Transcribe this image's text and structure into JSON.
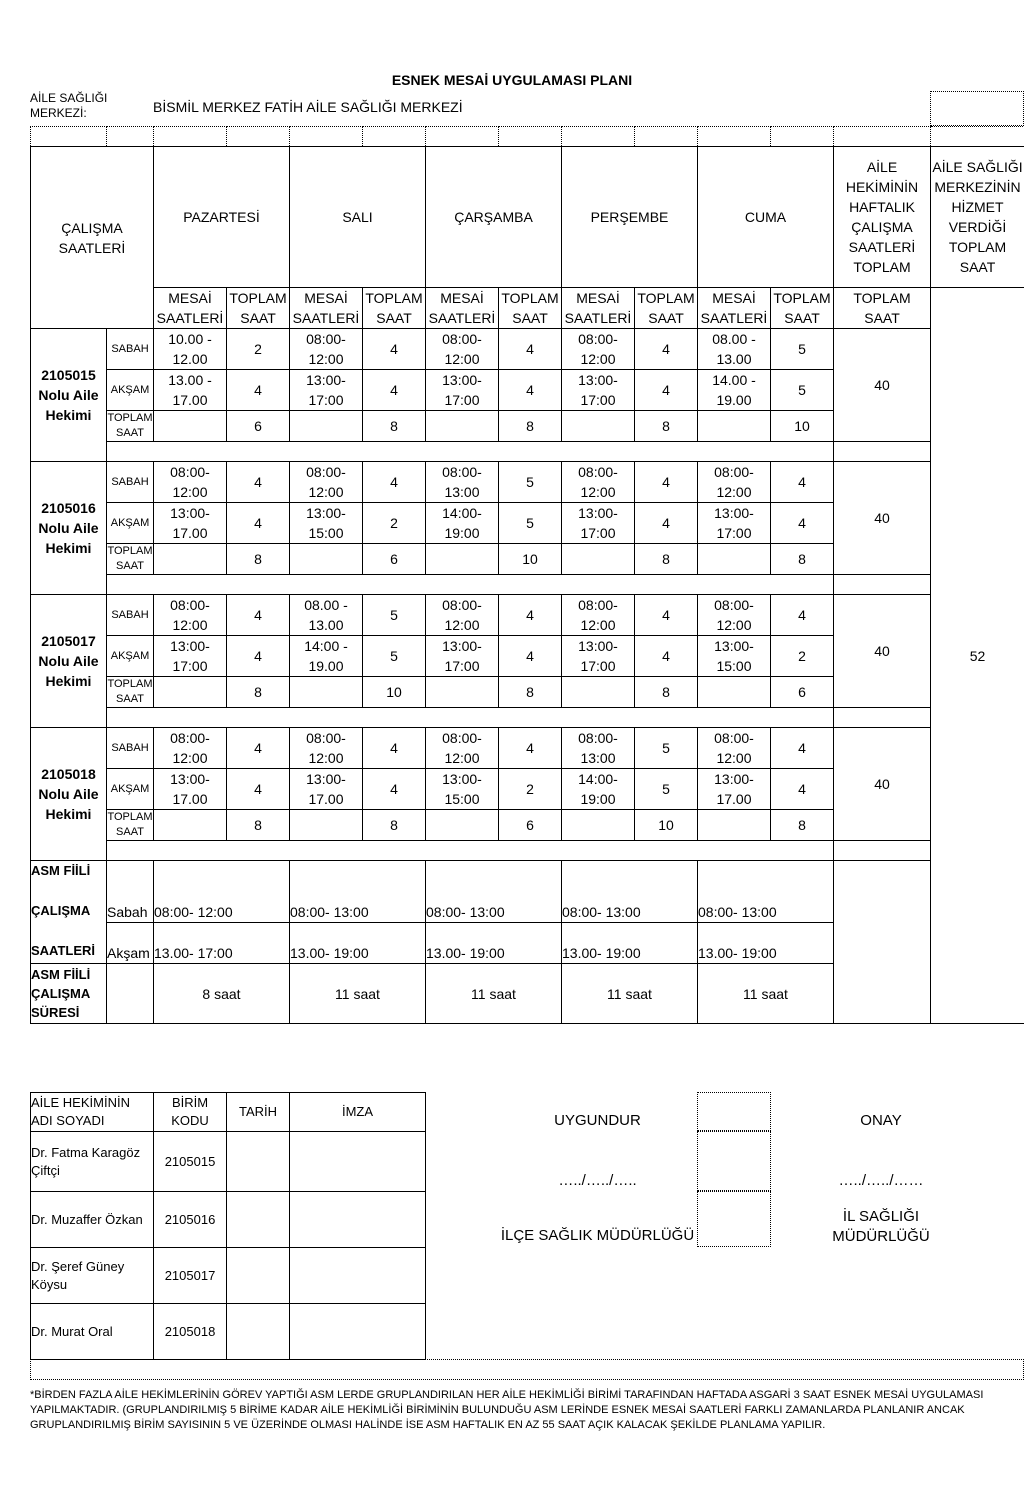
{
  "title": "ESNEK MESAİ UYGULAMASI PLANI",
  "asm_label": "AİLE SAĞLIĞI MERKEZİ:",
  "asm_name": "BİSMİL MERKEZ FATİH AİLE SAĞLIĞI MERKEZİ",
  "header": {
    "calisma": "ÇALIŞMA SAATLERİ",
    "days": [
      "PAZARTESİ",
      "SALI",
      "ÇARŞAMBA",
      "PERŞEMBE",
      "CUMA"
    ],
    "weekly": "AİLE HEKİMİNİN HAFTALIK ÇALIŞMA SAATLERİ TOPLAM",
    "asm_total": "AİLE SAĞLIĞI MERKEZİNİN HİZMET VERDİĞİ TOPLAM SAAT",
    "mesai": "MESAİ SAATLERİ",
    "toplam": "TOPLAM SAAT"
  },
  "row_labels": {
    "sabah": "SABAH",
    "aksam": "AKŞAM",
    "toplam": "TOPLAM SAAT"
  },
  "groups": [
    {
      "name": "2105015 Nolu Aile Hekimi",
      "sabah": [
        [
          "10.00 - 12.00",
          "2"
        ],
        [
          "08:00- 12:00",
          "4"
        ],
        [
          "08:00- 12:00",
          "4"
        ],
        [
          "08:00- 12:00",
          "4"
        ],
        [
          "08.00 - 13.00",
          "5"
        ]
      ],
      "aksam": [
        [
          "13.00 - 17.00",
          "4"
        ],
        [
          "13:00- 17:00",
          "4"
        ],
        [
          "13:00- 17:00",
          "4"
        ],
        [
          "13:00- 17:00",
          "4"
        ],
        [
          "14.00 - 19.00",
          "5"
        ]
      ],
      "toplam": [
        "6",
        "8",
        "8",
        "8",
        "10"
      ],
      "weekly": "40"
    },
    {
      "name": "2105016 Nolu Aile Hekimi",
      "sabah": [
        [
          "08:00- 12:00",
          "4"
        ],
        [
          "08:00- 12:00",
          "4"
        ],
        [
          "08:00- 13:00",
          "5"
        ],
        [
          "08:00- 12:00",
          "4"
        ],
        [
          "08:00- 12:00",
          "4"
        ]
      ],
      "aksam": [
        [
          "13:00- 17.00",
          "4"
        ],
        [
          "13:00- 15:00",
          "2"
        ],
        [
          "14:00- 19:00",
          "5"
        ],
        [
          "13:00- 17:00",
          "4"
        ],
        [
          "13:00- 17:00",
          "4"
        ]
      ],
      "toplam": [
        "8",
        "6",
        "10",
        "8",
        "8"
      ],
      "weekly": "40"
    },
    {
      "name": "2105017 Nolu Aile Hekimi",
      "sabah": [
        [
          "08:00- 12:00",
          "4"
        ],
        [
          "08.00 - 13.00",
          "5"
        ],
        [
          "08:00- 12:00",
          "4"
        ],
        [
          "08:00- 12:00",
          "4"
        ],
        [
          "08:00- 12:00",
          "4"
        ]
      ],
      "aksam": [
        [
          "13:00- 17:00",
          "4"
        ],
        [
          "14:00 - 19.00",
          "5"
        ],
        [
          "13:00- 17:00",
          "4"
        ],
        [
          "13:00- 17:00",
          "4"
        ],
        [
          "13:00- 15:00",
          "2"
        ]
      ],
      "toplam": [
        "8",
        "10",
        "8",
        "8",
        "6"
      ],
      "weekly": "40"
    },
    {
      "name": "2105018 Nolu Aile Hekimi",
      "sabah": [
        [
          "08:00- 12:00",
          "4"
        ],
        [
          "08:00- 12:00",
          "4"
        ],
        [
          "08:00- 12:00",
          "4"
        ],
        [
          "08:00- 13:00",
          "5"
        ],
        [
          "08:00- 12:00",
          "4"
        ]
      ],
      "aksam": [
        [
          "13:00- 17.00",
          "4"
        ],
        [
          "13:00- 17.00",
          "4"
        ],
        [
          "13:00- 15:00",
          "2"
        ],
        [
          "14:00- 19:00",
          "5"
        ],
        [
          "13:00- 17.00",
          "4"
        ]
      ],
      "toplam": [
        "8",
        "8",
        "6",
        "10",
        "8"
      ],
      "weekly": "40"
    }
  ],
  "asm_total_value": "52",
  "asm_fiili": {
    "label": "ASM FİİLİ ÇALIŞMA SAATLERİ",
    "sabah_label": "Sabah",
    "aksam_label": "Akşam",
    "sabah": [
      "08:00- 12:00",
      "08:00- 13:00",
      "08:00- 13:00",
      "08:00- 13:00",
      "08:00- 13:00"
    ],
    "aksam": [
      "13.00- 17:00",
      "13.00- 19:00",
      "13.00- 19:00",
      "13.00- 19:00",
      "13.00- 19:00"
    ],
    "sure_label": "ASM FİİLİ ÇALIŞMA SÜRESİ",
    "sure": [
      "8 saat",
      "11 saat",
      "11 saat",
      "11 saat",
      "11 saat"
    ]
  },
  "signature": {
    "headers": [
      "AİLE HEKİMİNİN ADI SOYADI",
      "BİRİM KODU",
      "TARİH",
      "İMZA"
    ],
    "rows": [
      [
        "Dr. Fatma Karagöz Çiftçi",
        "2105015"
      ],
      [
        "Dr. Muzaffer Özkan",
        "2105016"
      ],
      [
        "Dr. Şeref Güney Köysu",
        "2105017"
      ],
      [
        "Dr. Murat Oral",
        "2105018"
      ]
    ]
  },
  "approval": {
    "uygundur": "UYGUNDUR",
    "date1": "…../…../…..",
    "ilce": "İLÇE SAĞLIK MÜDÜRLÜĞÜ",
    "onay": "ONAY",
    "date2": "…../…../……",
    "il": "İL SAĞLIĞI MÜDÜRLÜĞÜ"
  },
  "note": "*BİRDEN FAZLA AİLE HEKİMLERİNİN GÖREV YAPTIĞI ASM LERDE GRUPLANDIRILAN HER AİLE HEKİMLİĞİ BİRİMİ TARAFINDAN HAFTADA ASGARİ 3 SAAT ESNEK MESAİ UYGULAMASI YAPILMAKTADIR. (GRUPLANDIRILMIŞ 5 BİRİME KADAR AİLE HEKİMLİĞİ BİRİMİNİN BULUNDUĞU ASM LERİNDE ESNEK MESAİ SAATLERİ FARKLI ZAMANLARDA PLANLANIR ANCAK GRUPLANDIRILMIŞ BİRİM SAYISININ 5 VE ÜZERİNDE OLMASI HALİNDE İSE ASM HAFTALIK EN AZ 55 SAAT AÇIK KALACAK ŞEKİLDE PLANLAMA YAPILIR."
}
